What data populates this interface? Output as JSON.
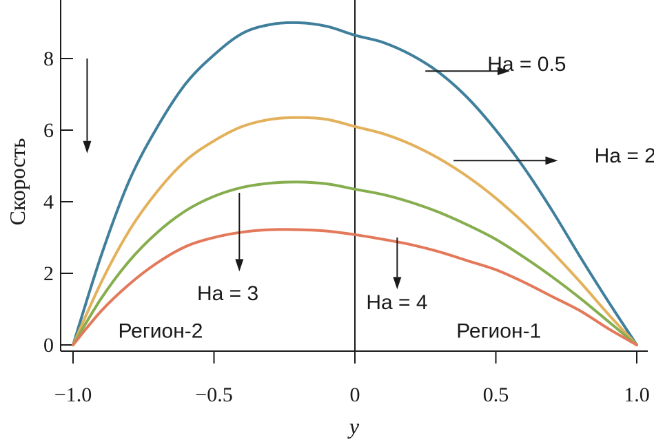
{
  "chart_data": {
    "type": "line",
    "title": "",
    "xlabel": "y",
    "ylabel": "Скорость",
    "xlim": [
      -1.0,
      1.0
    ],
    "ylim": [
      0,
      9.5
    ],
    "grid": false,
    "legend": "none",
    "x_ticks": [
      {
        "value": -1.0,
        "label": "−1.0"
      },
      {
        "value": -0.5,
        "label": "−0.5"
      },
      {
        "value": 0,
        "label": "0"
      },
      {
        "value": 0.5,
        "label": "0.5"
      },
      {
        "value": 1.0,
        "label": "1.0"
      }
    ],
    "y_ticks": [
      {
        "value": 0,
        "label": "0"
      },
      {
        "value": 2,
        "label": "2"
      },
      {
        "value": 4,
        "label": "4"
      },
      {
        "value": 6,
        "label": "6"
      },
      {
        "value": 8,
        "label": "8"
      }
    ],
    "x": [
      -1.0,
      -0.9,
      -0.8,
      -0.7,
      -0.6,
      -0.5,
      -0.4,
      -0.3,
      -0.2,
      -0.1,
      0.0,
      0.1,
      0.2,
      0.3,
      0.4,
      0.5,
      0.6,
      0.7,
      0.8,
      0.9,
      1.0
    ],
    "series": [
      {
        "key": "ha05",
        "color": "#3f7f9c",
        "values": [
          0,
          2.5,
          4.6,
          6.1,
          7.3,
          8.1,
          8.7,
          8.95,
          9.0,
          8.9,
          8.65,
          8.45,
          8.1,
          7.6,
          6.9,
          6.0,
          4.95,
          3.75,
          2.45,
          1.2,
          0
        ]
      },
      {
        "key": "ha2",
        "color": "#e3b15b",
        "values": [
          0,
          1.75,
          3.2,
          4.3,
          5.15,
          5.7,
          6.1,
          6.3,
          6.35,
          6.3,
          6.1,
          5.9,
          5.6,
          5.2,
          4.7,
          4.1,
          3.4,
          2.6,
          1.75,
          0.85,
          0
        ]
      },
      {
        "key": "ha3",
        "color": "#86ad4e",
        "values": [
          0,
          1.3,
          2.35,
          3.15,
          3.75,
          4.15,
          4.4,
          4.52,
          4.55,
          4.5,
          4.35,
          4.2,
          3.98,
          3.7,
          3.35,
          2.95,
          2.45,
          1.9,
          1.3,
          0.65,
          0
        ]
      },
      {
        "key": "ha4",
        "color": "#e3795a",
        "values": [
          0,
          0.95,
          1.7,
          2.3,
          2.75,
          3.0,
          3.15,
          3.22,
          3.22,
          3.18,
          3.08,
          2.95,
          2.8,
          2.6,
          2.35,
          2.1,
          1.75,
          1.35,
          0.95,
          0.45,
          0
        ]
      }
    ],
    "annotations": [
      {
        "text": "Ha = 0.5",
        "x": 0.47,
        "y": 7.65
      },
      {
        "text": "Ha = 2",
        "x": 0.85,
        "y": 5.1
      },
      {
        "text": "Ha = 3",
        "x": -0.56,
        "y": 1.25
      },
      {
        "text": "Ha = 4",
        "x": 0.04,
        "y": 1.0
      },
      {
        "text": "Регион-2",
        "x": -0.84,
        "y": 0.2
      },
      {
        "text": "Регион-1",
        "x": 0.36,
        "y": 0.2
      }
    ],
    "arrows": [
      {
        "from": [
          -0.95,
          8.0
        ],
        "to": [
          -0.95,
          5.35
        ]
      },
      {
        "from": [
          -0.41,
          4.25
        ],
        "to": [
          -0.41,
          2.05
        ]
      },
      {
        "from": [
          0.15,
          3.0
        ],
        "to": [
          0.15,
          1.55
        ]
      },
      {
        "from": [
          0.25,
          7.65
        ],
        "to": [
          0.55,
          7.65
        ]
      },
      {
        "from": [
          0.35,
          5.15
        ],
        "to": [
          0.72,
          5.15
        ]
      }
    ]
  }
}
